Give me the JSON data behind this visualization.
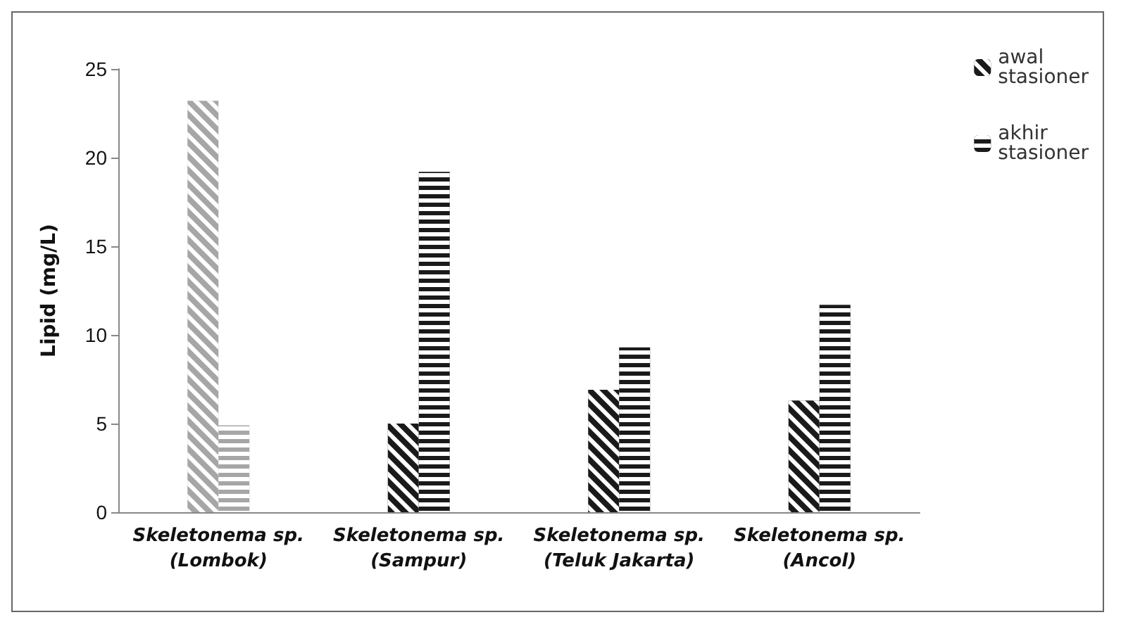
{
  "chart_data": {
    "type": "bar",
    "ylabel": "Lipid (mg/L)",
    "categories": [
      "Skeletonema sp.\n(Lombok)",
      "Skeletonema sp.\n(Sampur)",
      "Skeletonema sp.\n(Teluk Jakarta)",
      "Skeletonema sp.\n(Ancol)"
    ],
    "series": [
      {
        "name": "awal stasioner",
        "colors": [
          "#a6a6a6",
          "#1a1a1a",
          "#1a1a1a",
          "#1a1a1a"
        ],
        "values": [
          23.2,
          5.0,
          6.9,
          6.3
        ]
      },
      {
        "name": "akhir stasioner",
        "colors": [
          "#a6a6a6",
          "#1a1a1a",
          "#1a1a1a",
          "#1a1a1a"
        ],
        "values": [
          4.9,
          19.2,
          9.3,
          11.7
        ]
      }
    ],
    "ylim": [
      0,
      25
    ],
    "yticks": [
      0,
      5,
      10,
      15,
      20,
      25
    ],
    "grid": false,
    "legend": "top right"
  }
}
